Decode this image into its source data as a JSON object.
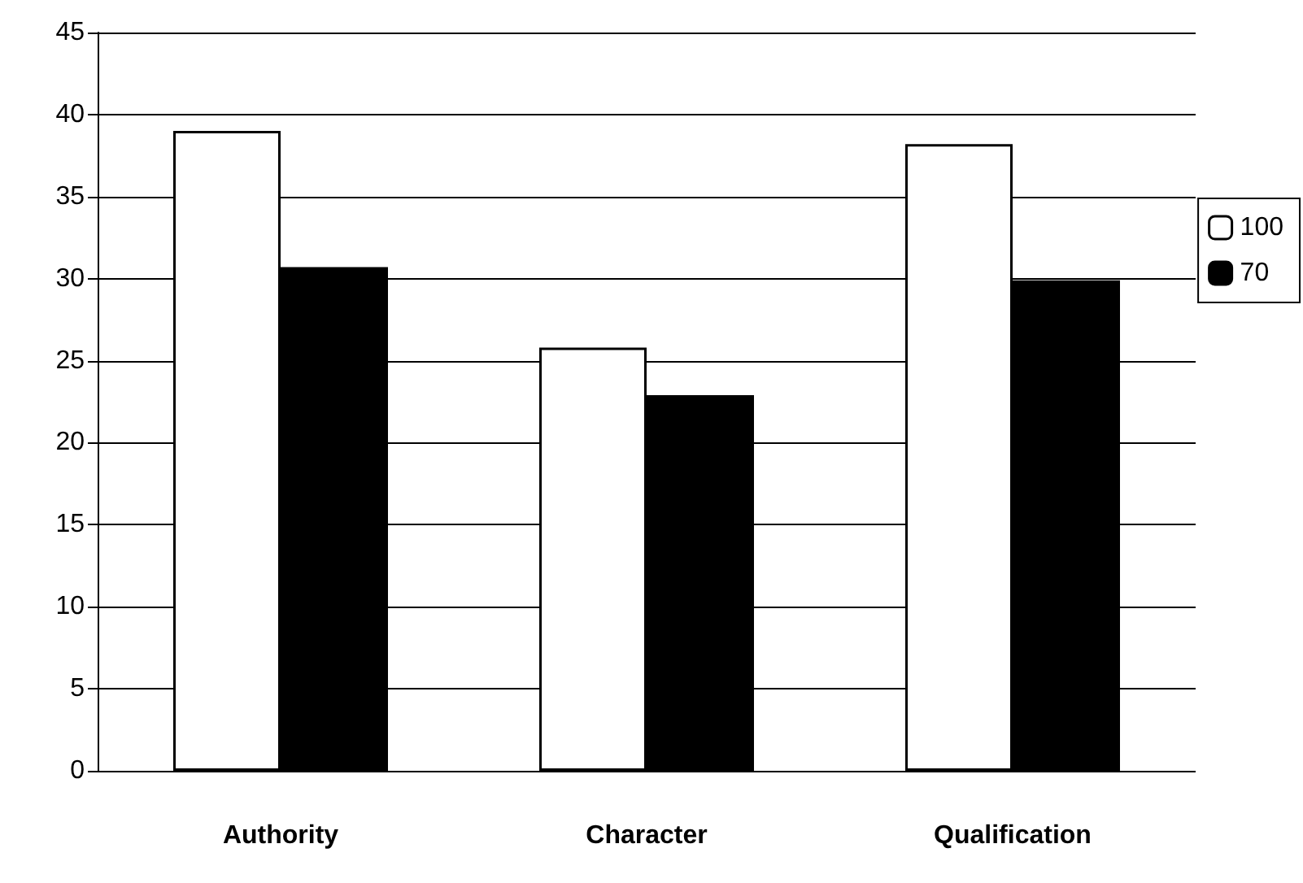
{
  "chart_data": {
    "type": "bar",
    "categories": [
      "Authority",
      "Character",
      "Qualification"
    ],
    "series": [
      {
        "name": "100",
        "color": "#ffffff",
        "values": [
          39.0,
          25.8,
          38.2
        ]
      },
      {
        "name": "70",
        "color": "#000000",
        "values": [
          30.7,
          22.9,
          29.9
        ]
      }
    ],
    "ylim": [
      0,
      45
    ],
    "yticks": [
      0,
      5,
      10,
      15,
      20,
      25,
      30,
      35,
      40,
      45
    ],
    "grid": "y",
    "legend": "right"
  }
}
